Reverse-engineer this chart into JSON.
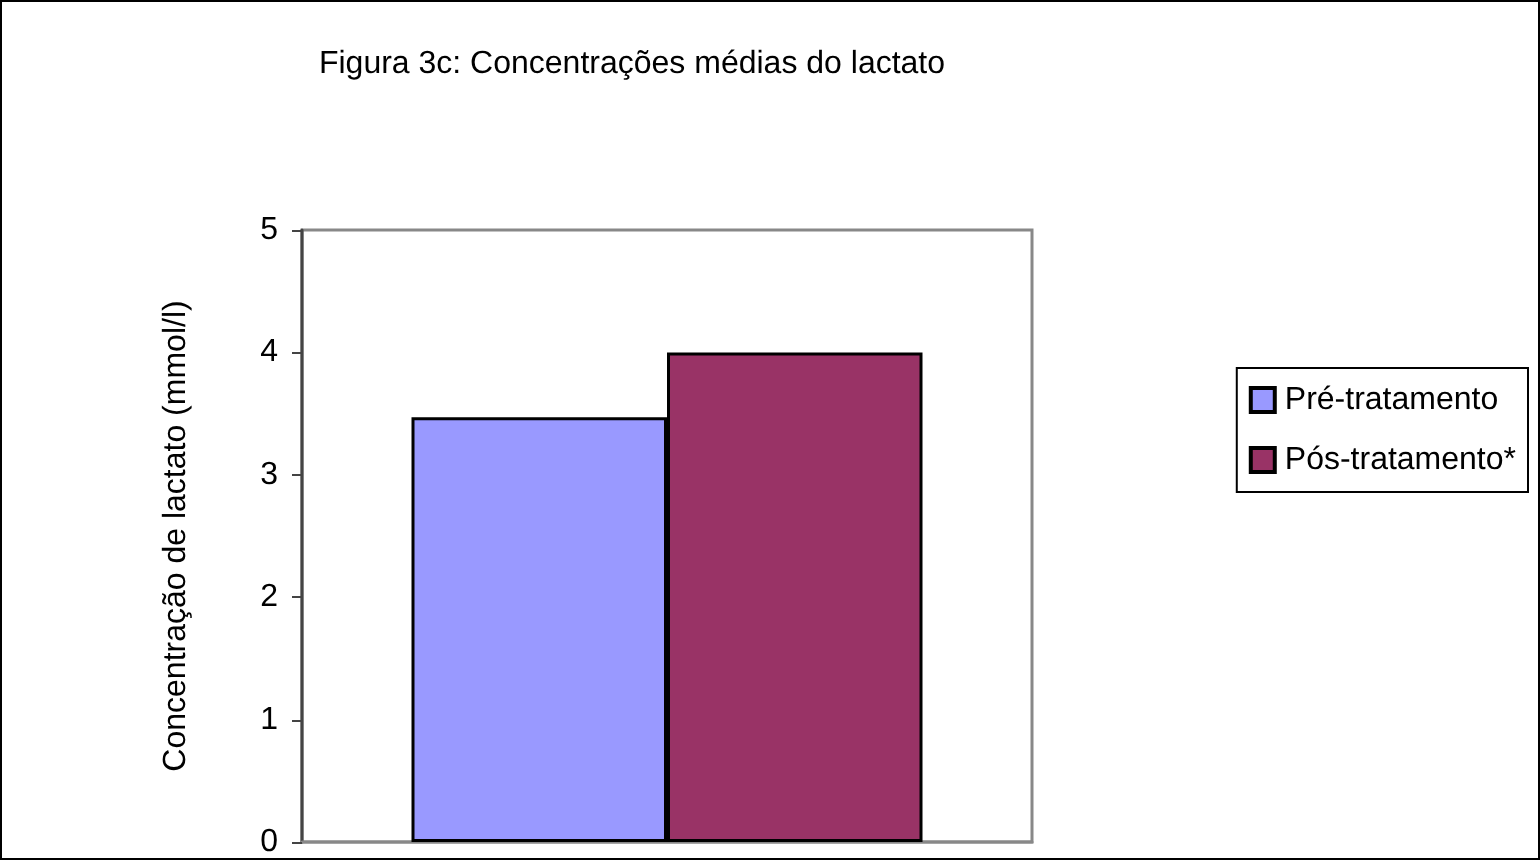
{
  "chart_data": {
    "type": "bar",
    "title": "Figura 3c: Concentrações médias do lactato",
    "ylabel": "Concentração de lactato (mmol/l)",
    "categories": [
      null
    ],
    "series": [
      {
        "name": "Pré-tratamento",
        "color": "#9999ff",
        "values": [
          3.47
        ]
      },
      {
        "name": "Pós-tratamento*",
        "color": "#993366",
        "values": [
          4.0
        ]
      }
    ],
    "ylim": [
      0,
      5
    ],
    "yticks": [
      0,
      1,
      2,
      3,
      4,
      5
    ],
    "grid": false,
    "legend": "right"
  }
}
